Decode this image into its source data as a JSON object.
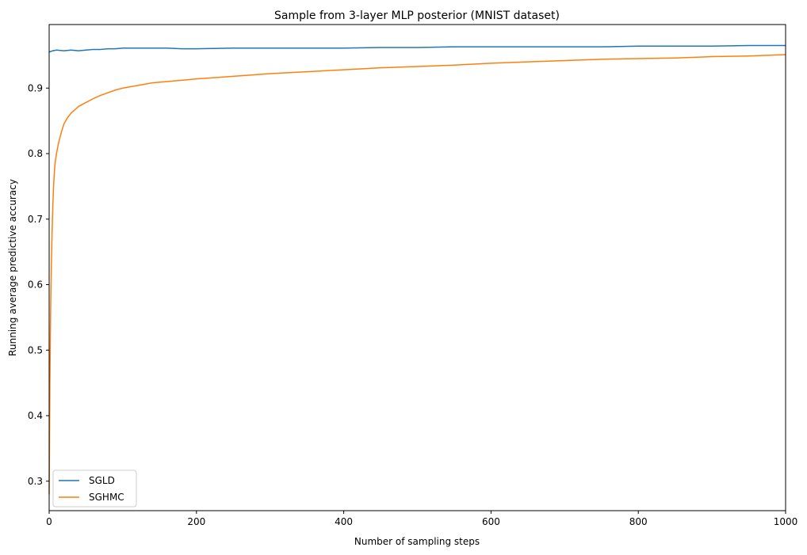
{
  "chart_data": {
    "type": "line",
    "title": "Sample from 3-layer MLP posterior (MNIST dataset)",
    "xlabel": "Number of sampling steps",
    "ylabel": "Running average predictive accuracy",
    "xlim": [
      0,
      1000
    ],
    "ylim": [
      0.255,
      0.997
    ],
    "x_ticks": [
      0,
      200,
      400,
      600,
      800,
      1000
    ],
    "y_ticks": [
      0.3,
      0.4,
      0.5,
      0.6,
      0.7,
      0.8,
      0.9
    ],
    "grid": false,
    "legend_position": "lower left",
    "series": [
      {
        "name": "SGLD",
        "color": "#1f77b4",
        "x": [
          0,
          5,
          10,
          20,
          30,
          40,
          50,
          60,
          70,
          80,
          90,
          100,
          120,
          140,
          160,
          180,
          200,
          250,
          300,
          350,
          400,
          450,
          500,
          550,
          600,
          650,
          700,
          750,
          800,
          850,
          900,
          950,
          1000
        ],
        "y": [
          0.955,
          0.957,
          0.958,
          0.957,
          0.958,
          0.957,
          0.958,
          0.959,
          0.959,
          0.96,
          0.96,
          0.961,
          0.961,
          0.961,
          0.961,
          0.96,
          0.96,
          0.961,
          0.961,
          0.961,
          0.961,
          0.962,
          0.962,
          0.963,
          0.963,
          0.963,
          0.963,
          0.963,
          0.964,
          0.964,
          0.964,
          0.965,
          0.965
        ]
      },
      {
        "name": "SGHMC",
        "color": "#ff7f0e",
        "x": [
          0,
          1,
          2,
          3,
          4,
          5,
          6,
          7,
          8,
          10,
          12,
          14,
          16,
          18,
          20,
          25,
          30,
          35,
          40,
          50,
          60,
          70,
          80,
          90,
          100,
          120,
          140,
          160,
          180,
          200,
          250,
          300,
          350,
          400,
          450,
          500,
          550,
          600,
          650,
          700,
          750,
          800,
          850,
          900,
          950,
          1000
        ],
        "y": [
          0.28,
          0.45,
          0.56,
          0.63,
          0.68,
          0.72,
          0.75,
          0.77,
          0.785,
          0.8,
          0.812,
          0.822,
          0.83,
          0.838,
          0.845,
          0.855,
          0.862,
          0.867,
          0.872,
          0.878,
          0.884,
          0.889,
          0.893,
          0.897,
          0.9,
          0.904,
          0.908,
          0.91,
          0.912,
          0.914,
          0.918,
          0.922,
          0.925,
          0.928,
          0.931,
          0.933,
          0.935,
          0.938,
          0.94,
          0.942,
          0.944,
          0.945,
          0.946,
          0.948,
          0.949,
          0.951
        ]
      }
    ]
  }
}
